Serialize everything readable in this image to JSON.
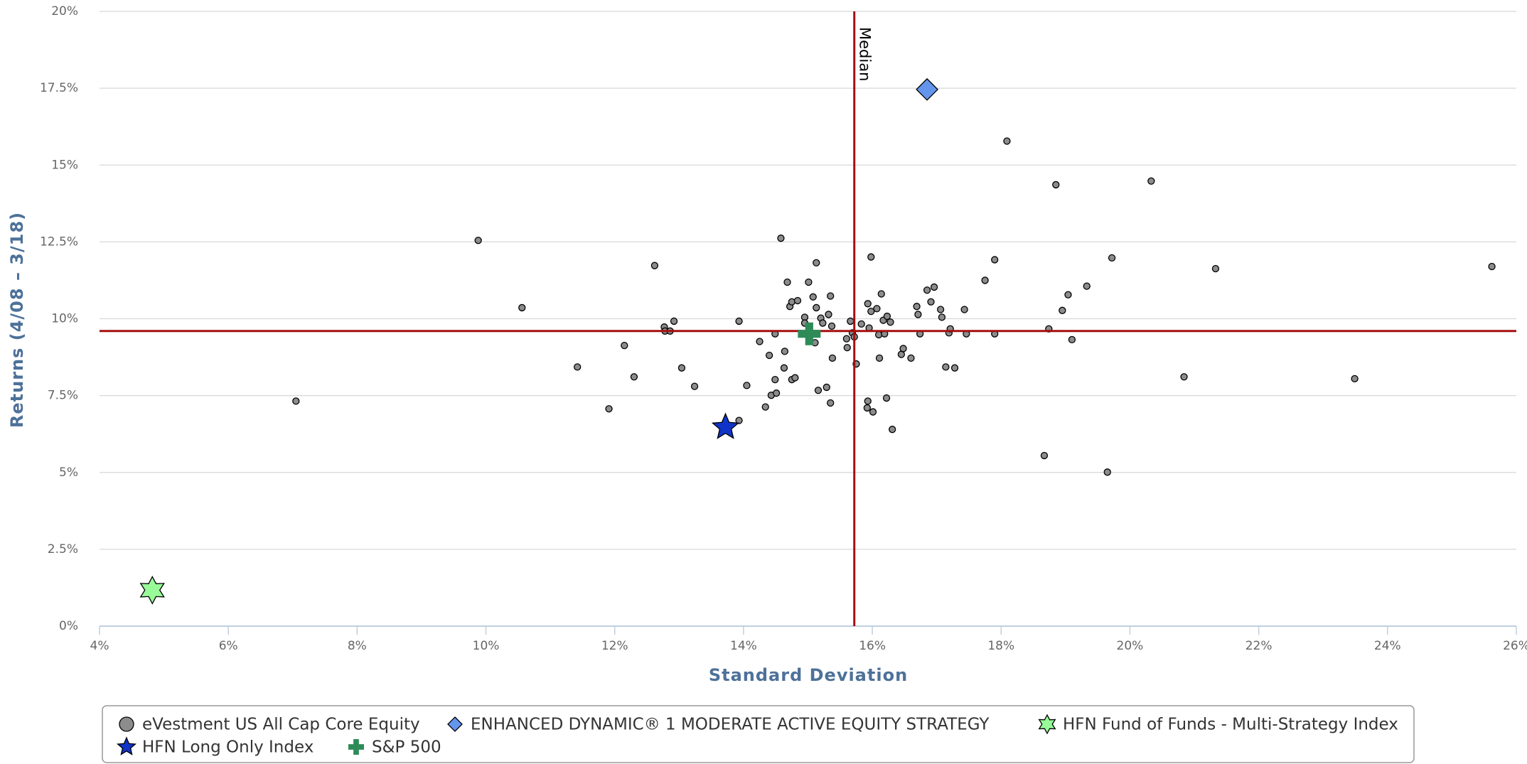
{
  "chart_data": {
    "type": "scatter",
    "xlabel": "Standard Deviation",
    "ylabel": "Returns (4/08 – 3/18)",
    "xlim": [
      4,
      26
    ],
    "ylim": [
      0,
      20
    ],
    "xticks": [
      {
        "value": 4,
        "label": "4%"
      },
      {
        "value": 6,
        "label": "6%"
      },
      {
        "value": 8,
        "label": "8%"
      },
      {
        "value": 10,
        "label": "10%"
      },
      {
        "value": 12,
        "label": "12%"
      },
      {
        "value": 14,
        "label": "14%"
      },
      {
        "value": 16,
        "label": "16%"
      },
      {
        "value": 18,
        "label": "18%"
      },
      {
        "value": 20,
        "label": "20%"
      },
      {
        "value": 22,
        "label": "22%"
      },
      {
        "value": 24,
        "label": "24%"
      },
      {
        "value": 26,
        "label": "26%"
      }
    ],
    "yticks": [
      {
        "value": 0,
        "label": "0%"
      },
      {
        "value": 2.5,
        "label": "2.5%"
      },
      {
        "value": 5,
        "label": "5%"
      },
      {
        "value": 7.5,
        "label": "7.5%"
      },
      {
        "value": 10,
        "label": "10%"
      },
      {
        "value": 12.5,
        "label": "12.5%"
      },
      {
        "value": 15,
        "label": "15%"
      },
      {
        "value": 17.5,
        "label": "17.5%"
      },
      {
        "value": 20,
        "label": "20%"
      }
    ],
    "grid": true,
    "median": {
      "label": "Median",
      "x": 15.72,
      "y": 9.6,
      "color": "#a50f0f"
    },
    "series": [
      {
        "name": "eVestment US All Cap Core Equity",
        "color": "#8c8c8c",
        "marker": "circle",
        "x": [
          7.05,
          9.88,
          10.56,
          11.42,
          11.91,
          12.15,
          12.3,
          12.62,
          12.77,
          12.78,
          12.86,
          12.92,
          13.04,
          13.24,
          13.93,
          13.93,
          14.05,
          14.25,
          14.34,
          14.4,
          14.43,
          14.49,
          14.49,
          14.51,
          14.58,
          14.63,
          14.64,
          14.68,
          14.72,
          14.75,
          14.75,
          14.8,
          14.84,
          14.95,
          14.95,
          15.01,
          15.08,
          15.13,
          15.13,
          15.11,
          15.16,
          15.2,
          15.23,
          15.29,
          15.32,
          15.35,
          15.37,
          15.38,
          15.35,
          15.61,
          15.6,
          15.66,
          15.69,
          15.72,
          15.75,
          15.83,
          15.93,
          15.95,
          15.98,
          15.98,
          15.93,
          15.92,
          16.01,
          16.07,
          16.1,
          16.11,
          16.14,
          16.17,
          16.19,
          16.22,
          16.23,
          16.28,
          16.31,
          16.45,
          16.48,
          16.6,
          16.69,
          16.71,
          16.74,
          16.85,
          16.91,
          16.96,
          17.06,
          17.08,
          17.14,
          17.19,
          17.21,
          17.28,
          17.43,
          17.46,
          17.75,
          17.9,
          17.9,
          18.09,
          18.67,
          18.74,
          18.85,
          18.95,
          19.04,
          19.1,
          19.33,
          19.65,
          19.72,
          20.33,
          20.84,
          21.33,
          23.49,
          25.62
        ],
        "values": [
          7.32,
          12.55,
          10.36,
          8.43,
          7.07,
          9.13,
          8.11,
          11.73,
          9.73,
          9.6,
          9.6,
          9.92,
          8.4,
          7.8,
          9.92,
          6.69,
          7.83,
          9.26,
          7.13,
          8.81,
          7.51,
          9.51,
          8.02,
          7.58,
          12.62,
          8.4,
          8.94,
          11.19,
          10.4,
          10.55,
          8.02,
          8.08,
          10.59,
          10.05,
          9.86,
          11.19,
          10.71,
          11.82,
          10.36,
          9.22,
          7.67,
          10.02,
          9.86,
          7.77,
          10.14,
          10.74,
          9.76,
          8.72,
          7.26,
          9.06,
          9.35,
          9.92,
          9.54,
          9.41,
          8.53,
          9.83,
          10.49,
          9.7,
          10.24,
          12.01,
          7.32,
          7.1,
          6.97,
          10.33,
          9.48,
          8.72,
          10.81,
          9.95,
          9.51,
          7.42,
          10.08,
          9.89,
          6.4,
          8.84,
          9.03,
          8.72,
          10.4,
          10.14,
          9.51,
          10.93,
          10.55,
          11.03,
          10.3,
          10.05,
          8.43,
          9.54,
          9.67,
          8.4,
          10.3,
          9.51,
          11.25,
          11.92,
          9.51,
          15.78,
          5.55,
          9.67,
          14.36,
          10.27,
          10.78,
          9.32,
          11.06,
          5.01,
          11.98,
          14.48,
          8.11,
          11.63,
          8.05,
          11.7
        ]
      },
      {
        "name": "ENHANCED DYNAMIC® 1 MODERATE ACTIVE EQUITY STRATEGY",
        "color": "#6495ed",
        "marker": "diamond",
        "x": [
          16.85
        ],
        "values": [
          17.46
        ]
      },
      {
        "name": "HFN Fund of Funds - Multi-Strategy Index",
        "color": "#98fb98",
        "marker": "star6",
        "x": [
          4.82
        ],
        "values": [
          1.17
        ]
      },
      {
        "name": "HFN Long Only Index",
        "color": "#1034c8",
        "marker": "star5",
        "x": [
          13.72
        ],
        "values": [
          6.47
        ]
      },
      {
        "name": "S&P 500",
        "color": "#2e8b57",
        "marker": "plus",
        "x": [
          15.02
        ],
        "values": [
          9.51
        ]
      }
    ]
  }
}
